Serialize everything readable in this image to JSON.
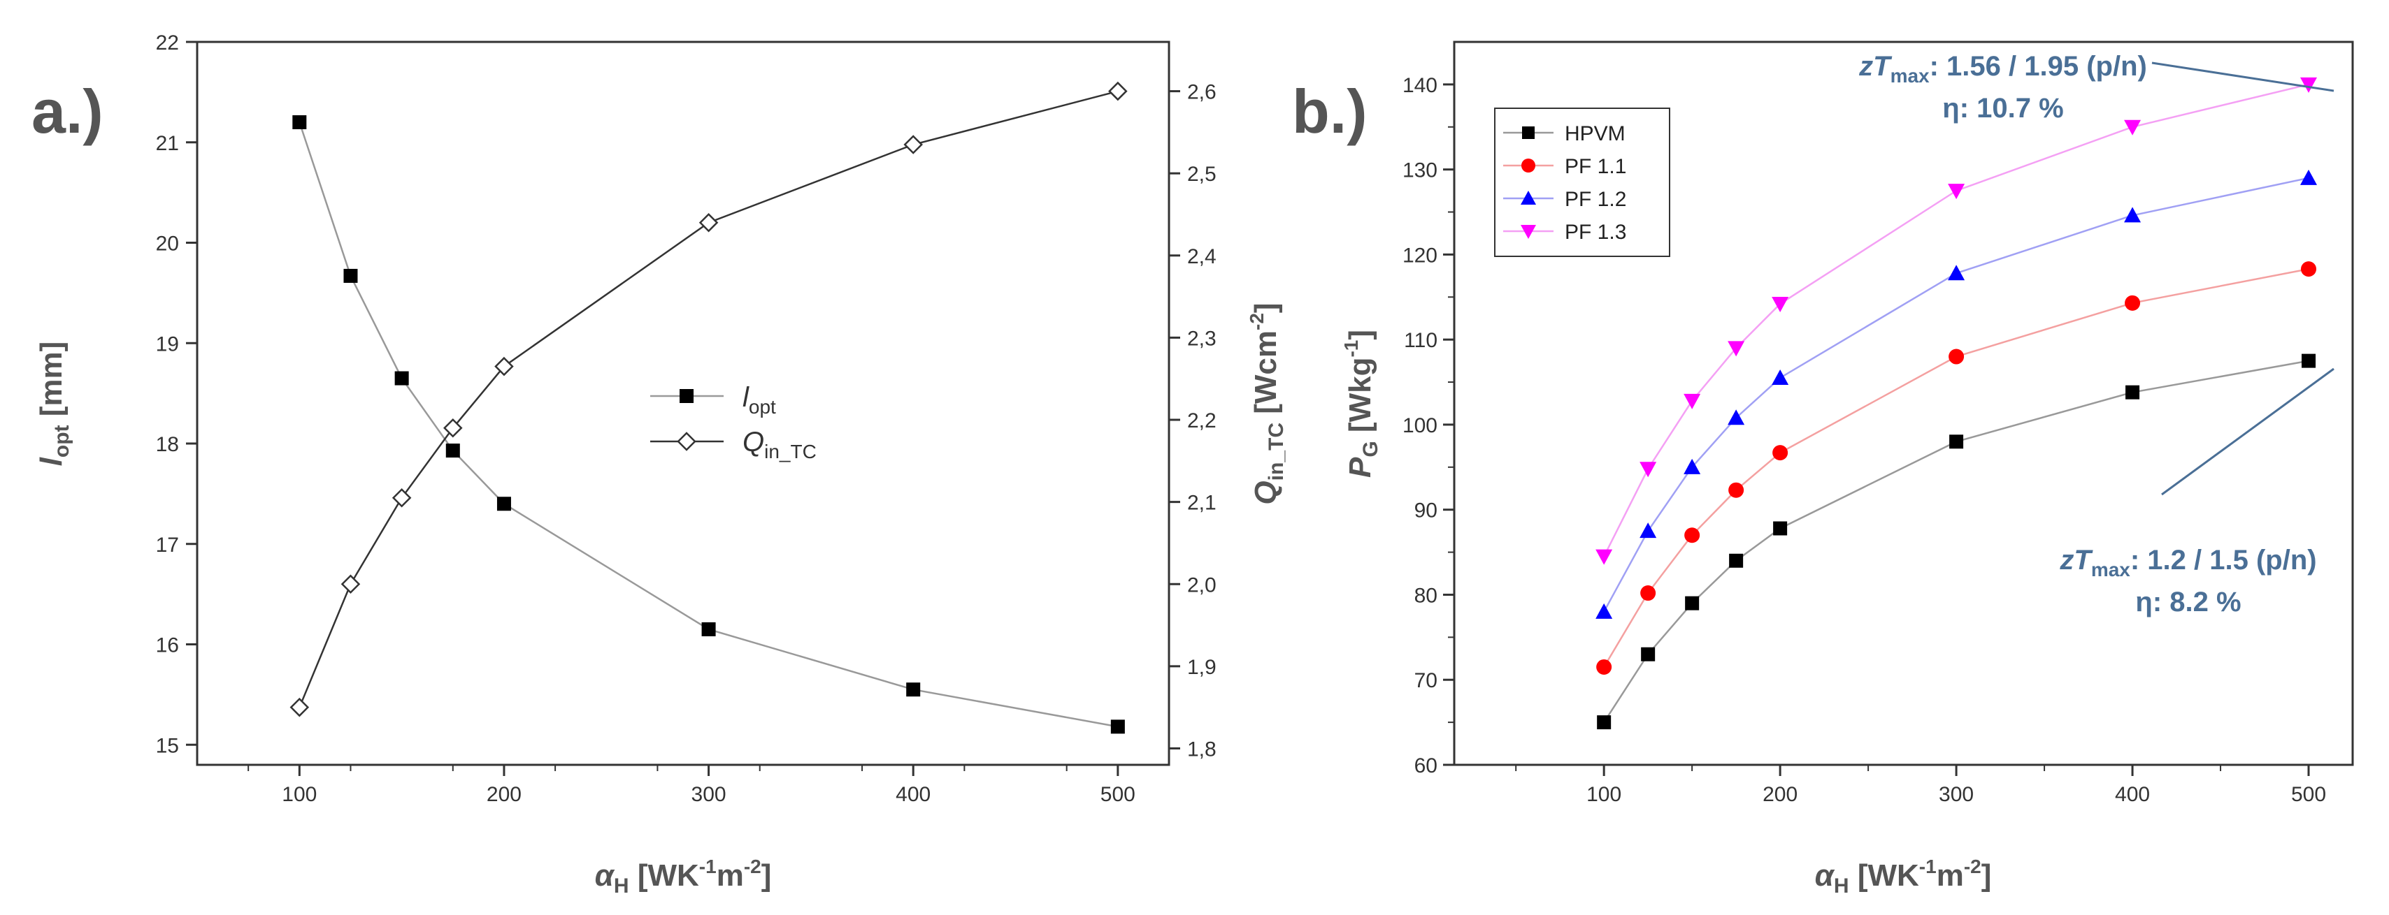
{
  "chart_data": [
    {
      "panel": "a.)",
      "type": "line",
      "x": [
        100,
        125,
        150,
        175,
        200,
        300,
        400,
        500
      ],
      "xlim": [
        50,
        525
      ],
      "xticks": [
        100,
        200,
        300,
        400,
        500
      ],
      "xlabel": {
        "prefix": "α",
        "sub": "H",
        "unit_pre": " [WK",
        "sup1": "-1",
        "mid": "m",
        "sup2": "-2",
        "close": "]"
      },
      "ylabel_left": {
        "main": "l",
        "sub": "opt",
        "unit": " [mm]"
      },
      "ylim_left": [
        14.8,
        22
      ],
      "yticks_left": [
        15,
        16,
        17,
        18,
        19,
        20,
        21,
        22
      ],
      "ylabel_right": {
        "main": "Q",
        "sub": "in_TC",
        "unit_pre": " [Wcm",
        "sup": "-2",
        "close": "]"
      },
      "ylim_right": [
        1.78,
        2.66
      ],
      "yticks_right": [
        "1,8",
        "1,9",
        "2,0",
        "2,1",
        "2,2",
        "2,3",
        "2,4",
        "2,5",
        "2,6"
      ],
      "series": [
        {
          "name": "l_opt",
          "label_main": "l",
          "label_sub": "opt",
          "axis": "left",
          "marker": "square-filled",
          "color": "#999999",
          "values": [
            21.2,
            19.67,
            18.65,
            17.93,
            17.4,
            16.15,
            15.55,
            15.18
          ]
        },
        {
          "name": "Q_in_TC",
          "label_main": "Q",
          "label_sub": "in_TC",
          "axis": "right",
          "marker": "diamond-open",
          "color": "#333333",
          "values": [
            1.85,
            2.0,
            2.105,
            2.19,
            2.265,
            2.44,
            2.535,
            2.6
          ]
        }
      ]
    },
    {
      "panel": "b.)",
      "type": "line",
      "x": [
        100,
        125,
        150,
        175,
        200,
        300,
        400,
        500
      ],
      "xlim": [
        15,
        525
      ],
      "xticks": [
        100,
        200,
        300,
        400,
        500
      ],
      "xlabel": {
        "prefix": "α",
        "sub": "H",
        "unit_pre": " [WK",
        "sup1": "-1",
        "mid": "m",
        "sup2": "-2",
        "close": "]"
      },
      "ylabel": {
        "main": "P",
        "sub": "G",
        "unit_pre": " [Wkg",
        "sup": "-1",
        "close": "]"
      },
      "ylim": [
        60,
        145
      ],
      "yticks": [
        60,
        70,
        80,
        90,
        100,
        110,
        120,
        130,
        140
      ],
      "series": [
        {
          "name": "HPVM",
          "marker": "square",
          "color": "#000000",
          "line": "#999999",
          "values": [
            65,
            73,
            79,
            84,
            87.8,
            98,
            103.8,
            107.5
          ]
        },
        {
          "name": "PF 1.1",
          "marker": "circle",
          "color": "#ff0000",
          "line": "#f4a0a0",
          "values": [
            71.5,
            80.2,
            87,
            92.3,
            96.7,
            108,
            114.3,
            118.3
          ]
        },
        {
          "name": "PF 1.2",
          "marker": "triangle-up",
          "color": "#0000ff",
          "line": "#a0a0f4",
          "values": [
            78,
            87.5,
            95,
            100.8,
            105.5,
            117.8,
            124.6,
            129
          ]
        },
        {
          "name": "PF 1.3",
          "marker": "triangle-down",
          "color": "#ff00ff",
          "line": "#f4a0f4",
          "values": [
            84.5,
            94.8,
            102.8,
            109,
            114.2,
            127.5,
            135,
            140
          ]
        }
      ],
      "annotations": [
        {
          "id": "top",
          "zt_pre": "zT",
          "zt_sub": "max",
          "zt_val": ": 1.56 / 1.95 (p/n)",
          "eta": "η: 10.7 %"
        },
        {
          "id": "bottom",
          "zt_pre": "zT",
          "zt_sub": "max",
          "zt_val": ": 1.2 / 1.5 (p/n)",
          "eta": "η: 8.2 %"
        }
      ]
    }
  ]
}
